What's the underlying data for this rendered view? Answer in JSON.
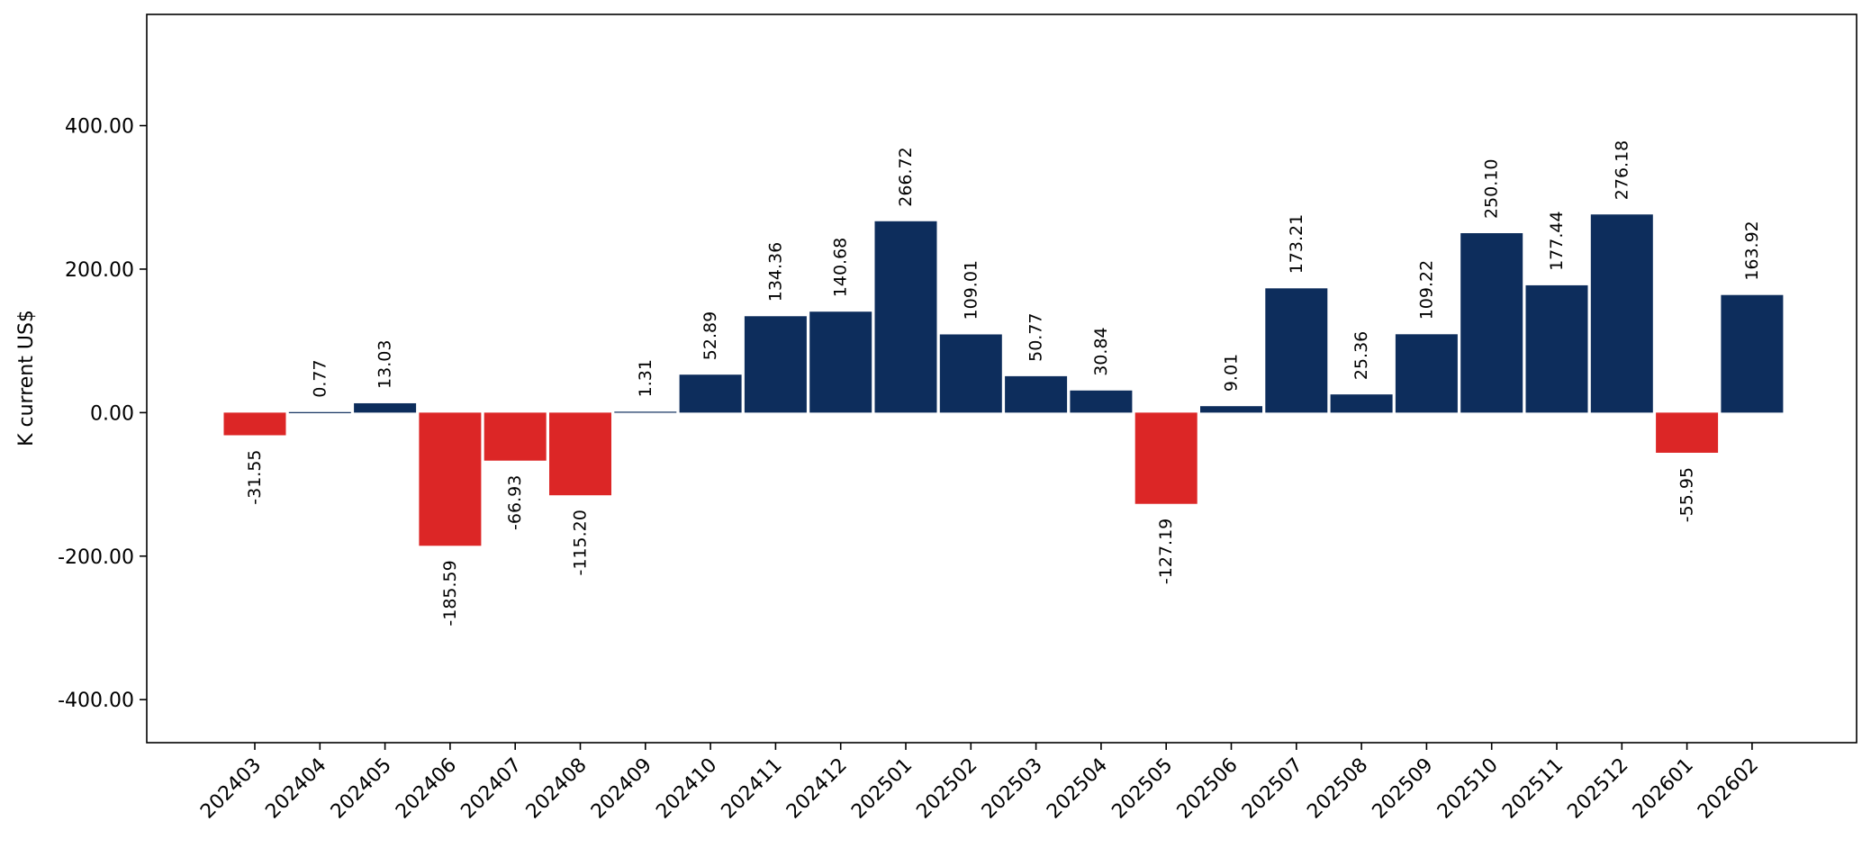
{
  "chart_data": {
    "type": "bar",
    "title": "",
    "xlabel": "",
    "ylabel": "K current US$",
    "ylim": [
      -460,
      555
    ],
    "yticks": [
      -400,
      -200,
      0,
      200,
      400
    ],
    "ytick_labels": [
      "-400.00",
      "-200.00",
      "0.00",
      "200.00",
      "400.00"
    ],
    "grid": false,
    "colors": {
      "positive": "#0d2d5c",
      "negative": "#dc2626"
    },
    "categories": [
      "202403",
      "202404",
      "202405",
      "202406",
      "202407",
      "202408",
      "202409",
      "202410",
      "202411",
      "202412",
      "202501",
      "202502",
      "202503",
      "202504",
      "202505",
      "202506",
      "202507",
      "202508",
      "202509",
      "202510",
      "202511",
      "202512",
      "202601",
      "202602"
    ],
    "values": [
      -31.55,
      0.77,
      13.03,
      -185.59,
      -66.93,
      -115.2,
      1.31,
      52.89,
      134.36,
      140.68,
      266.72,
      109.01,
      50.77,
      30.84,
      -127.19,
      9.01,
      173.21,
      25.36,
      109.22,
      250.1,
      177.44,
      276.18,
      -55.95,
      163.92
    ],
    "value_labels": [
      "-31.55",
      "0.77",
      "13.03",
      "-185.59",
      "-66.93",
      "-115.20",
      "1.31",
      "52.89",
      "134.36",
      "140.68",
      "266.72",
      "109.01",
      "50.77",
      "30.84",
      "-127.19",
      "9.01",
      "173.21",
      "25.36",
      "109.22",
      "250.10",
      "177.44",
      "276.18",
      "-55.95",
      "163.92"
    ]
  }
}
